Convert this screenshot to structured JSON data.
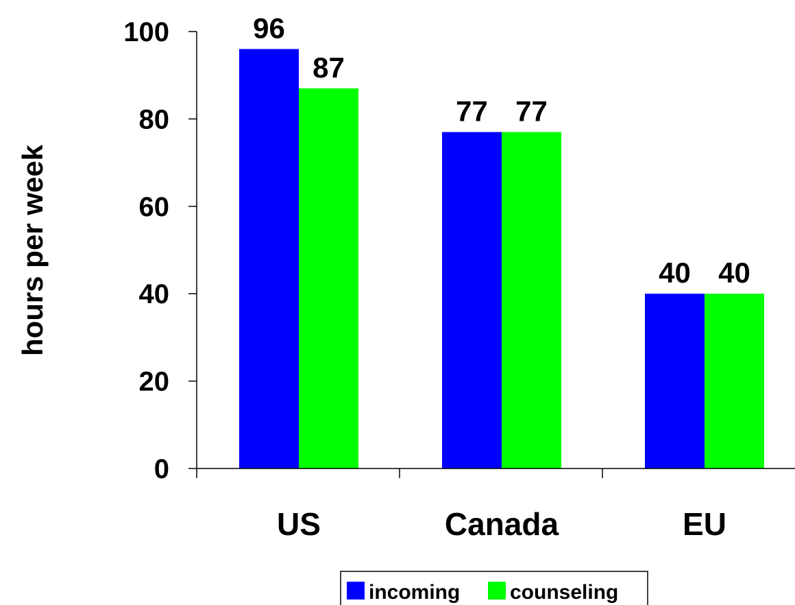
{
  "chart_data": {
    "type": "bar",
    "categories": [
      "US",
      "Canada",
      "EU"
    ],
    "series": [
      {
        "name": "incoming",
        "values": [
          96,
          77,
          40
        ],
        "color": "#0000FF"
      },
      {
        "name": "counseling",
        "values": [
          87,
          77,
          40
        ],
        "color": "#00FF00"
      }
    ],
    "title": "",
    "xlabel": "",
    "ylabel": "hours per week",
    "ylim": [
      0,
      100
    ],
    "yticks": [
      0,
      20,
      40,
      60,
      80,
      100
    ],
    "grid": false,
    "data_labels": true,
    "legend": {
      "placement": "bottom-center",
      "entries": [
        "incoming",
        "counseling"
      ]
    }
  }
}
